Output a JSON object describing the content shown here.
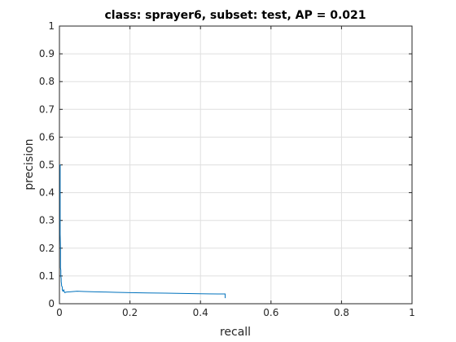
{
  "chart_data": {
    "type": "line",
    "title": "class: sprayer6, subset: test, AP = 0.021",
    "xlabel": "recall",
    "ylabel": "precision",
    "xlim": [
      0,
      1
    ],
    "ylim": [
      0,
      1
    ],
    "xticks": [
      "0",
      "0.2",
      "0.4",
      "0.6",
      "0.8",
      "1"
    ],
    "yticks": [
      "0",
      "0.1",
      "0.2",
      "0.3",
      "0.4",
      "0.5",
      "0.6",
      "0.7",
      "0.8",
      "0.9",
      "1"
    ],
    "grid": true,
    "line_color": "#0072BD",
    "series": [
      {
        "x": [
          0,
          0.002,
          0.002,
          0.003,
          0.003,
          0.004,
          0.004,
          0.005,
          0.005,
          0.006,
          0.006,
          0.008,
          0.008,
          0.01,
          0.012,
          0.015,
          0.02,
          0.03,
          0.05,
          0.07,
          0.1,
          0.13,
          0.16,
          0.2,
          0.25,
          0.3,
          0.35,
          0.4,
          0.45,
          0.47,
          0.47
        ],
        "y": [
          0.5,
          0.5,
          0.25,
          0.2,
          0.13,
          0.12,
          0.1,
          0.09,
          0.08,
          0.07,
          0.065,
          0.06,
          0.05,
          0.045,
          0.05,
          0.04,
          0.042,
          0.043,
          0.045,
          0.044,
          0.043,
          0.042,
          0.041,
          0.04,
          0.039,
          0.038,
          0.037,
          0.036,
          0.035,
          0.035,
          0.02
        ]
      }
    ]
  }
}
